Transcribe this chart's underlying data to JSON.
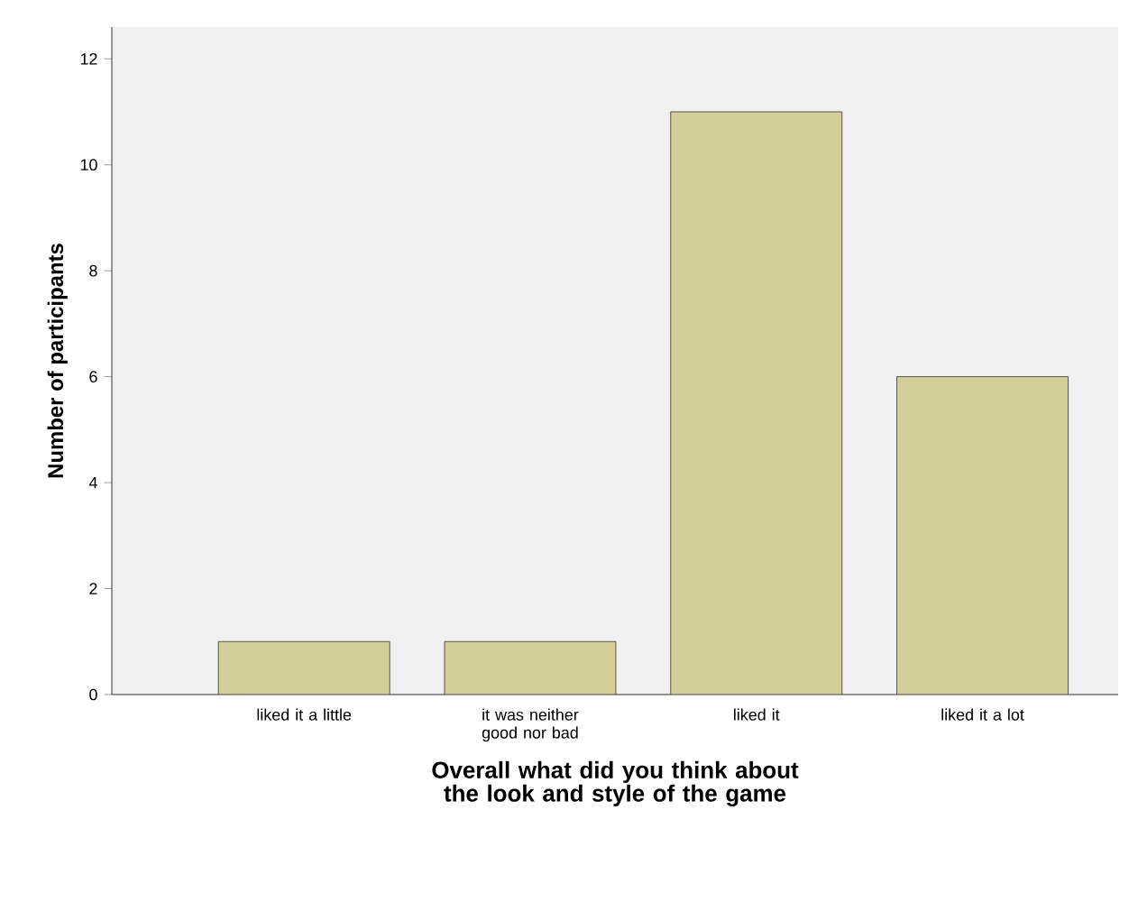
{
  "chart_data": {
    "type": "bar",
    "categories": [
      "liked it a little",
      "it was neither good nor bad",
      "liked it",
      "liked it a lot"
    ],
    "values": [
      1,
      1,
      11,
      6
    ],
    "color": "#d3ce98",
    "xlabel": "Overall what did you think about the look and style of the game",
    "ylabel": "Number of participants",
    "ylim": [
      0,
      12.6
    ],
    "yticks": [
      0,
      2,
      4,
      6,
      8,
      10,
      12
    ]
  }
}
